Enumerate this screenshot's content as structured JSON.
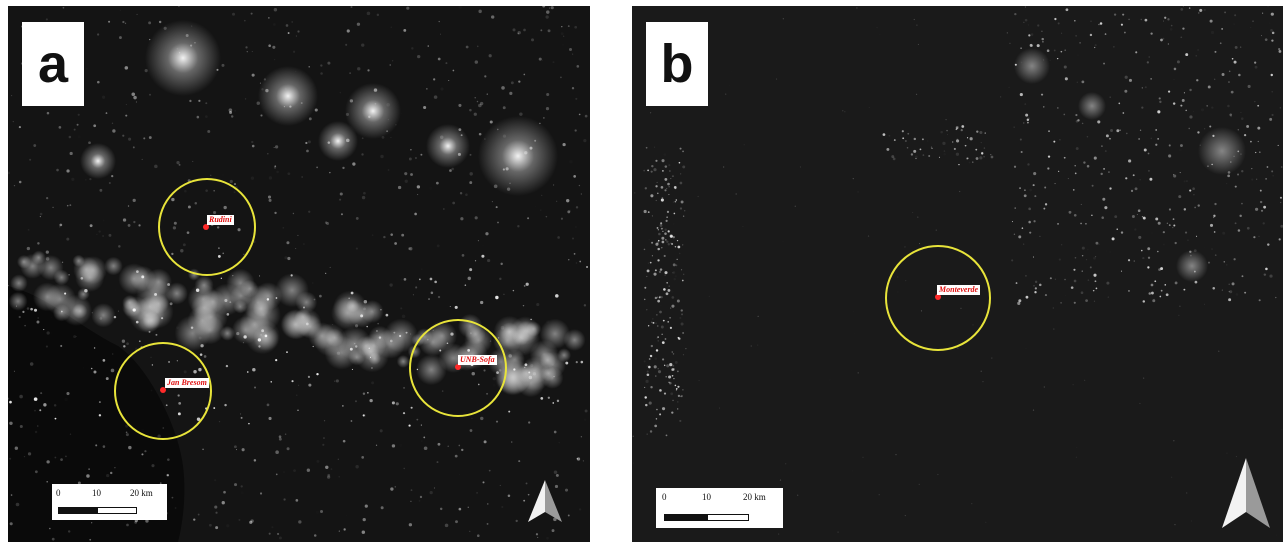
{
  "panels": [
    {
      "letter": "a",
      "sites": [
        {
          "label": "Rudini"
        },
        {
          "label": "Jan Bresom"
        },
        {
          "label": "UNB-Sofa"
        }
      ],
      "scale": {
        "ticks": [
          "0",
          "10",
          "20 km"
        ]
      }
    },
    {
      "letter": "b",
      "sites": [
        {
          "label": "Monteverde"
        }
      ],
      "scale": {
        "ticks": [
          "0",
          "10",
          "20 km"
        ]
      }
    }
  ],
  "colors": {
    "background": "#141414",
    "lights": "#ffffff",
    "circle": "#e8e43a",
    "site_marker": "#ff2a2a"
  },
  "icons": {
    "north_arrow": "north-arrow-icon"
  }
}
